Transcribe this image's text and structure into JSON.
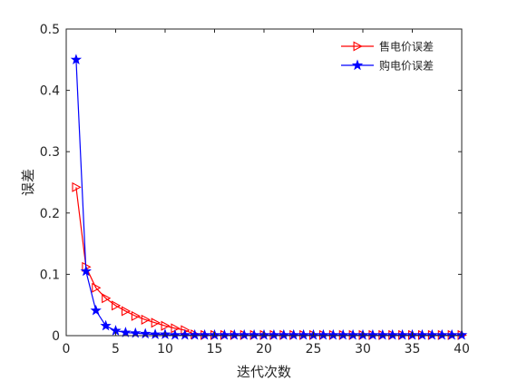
{
  "chart_data": {
    "type": "line",
    "title": "",
    "xlabel": "迭代次数",
    "ylabel": "误差",
    "xlim": [
      0,
      40
    ],
    "ylim": [
      0,
      0.5
    ],
    "xticks": [
      0,
      5,
      10,
      15,
      20,
      25,
      30,
      35,
      40
    ],
    "yticks": [
      0,
      0.1,
      0.2,
      0.3,
      0.4,
      0.5
    ],
    "xtick_labels": [
      "0",
      "5",
      "10",
      "15",
      "20",
      "25",
      "30",
      "35",
      "40"
    ],
    "ytick_labels": [
      "0",
      "0.1",
      "0.2",
      "0.3",
      "0.4",
      "0.5"
    ],
    "grid": false,
    "legend_position": "top-right",
    "x": [
      1,
      2,
      3,
      4,
      5,
      6,
      7,
      8,
      9,
      10,
      11,
      12,
      13,
      14,
      15,
      16,
      17,
      18,
      19,
      20,
      21,
      22,
      23,
      24,
      25,
      26,
      27,
      28,
      29,
      30,
      31,
      32,
      33,
      34,
      35,
      36,
      37,
      38,
      39,
      40
    ],
    "series": [
      {
        "name": "售电价误差",
        "color": "#ff0000",
        "marker": "triangle-right",
        "values": [
          0.242,
          0.112,
          0.078,
          0.061,
          0.049,
          0.04,
          0.032,
          0.026,
          0.021,
          0.016,
          0.012,
          0.009,
          0.002,
          0.001,
          0.001,
          0.001,
          0.001,
          0.001,
          0.001,
          0.001,
          0.001,
          0.001,
          0.001,
          0.001,
          0.001,
          0.001,
          0.001,
          0.001,
          0.001,
          0.001,
          0.001,
          0.001,
          0.001,
          0.001,
          0.001,
          0.001,
          0.001,
          0.001,
          0.001,
          0.001
        ]
      },
      {
        "name": "购电价误差",
        "color": "#0000ff",
        "marker": "star",
        "values": [
          0.45,
          0.105,
          0.041,
          0.016,
          0.008,
          0.005,
          0.004,
          0.003,
          0.002,
          0.002,
          0.001,
          0.001,
          0.001,
          0.001,
          0.001,
          0.001,
          0.001,
          0.001,
          0.001,
          0.001,
          0.001,
          0.001,
          0.001,
          0.001,
          0.001,
          0.001,
          0.001,
          0.001,
          0.001,
          0.001,
          0.001,
          0.001,
          0.001,
          0.001,
          0.001,
          0.001,
          0.001,
          0.001,
          0.001,
          0.001
        ]
      }
    ]
  }
}
